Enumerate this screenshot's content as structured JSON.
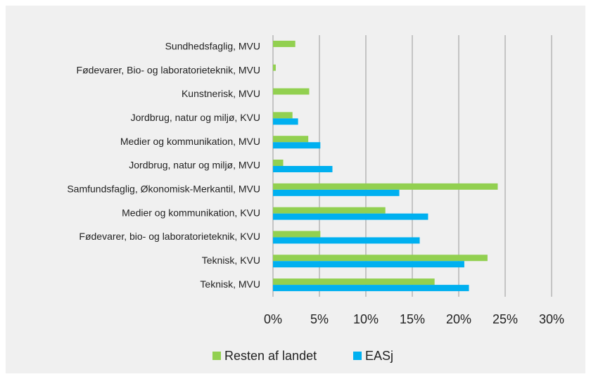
{
  "chart_data": {
    "type": "hbar",
    "categories": [
      "Sundhedsfaglig, MVU",
      "Fødevarer, Bio- og laboratorieteknik, MVU",
      "Kunstnerisk, MVU",
      "Jordbrug, natur og miljø, KVU",
      "Medier og kommunikation, MVU",
      "Jordbrug, natur og miljø, MVU",
      "Samfundsfaglig, Økonomisk-Merkantil, MVU",
      "Medier og kommunikation, KVU",
      "Fødevarer, bio- og laboratorieteknik, KVU",
      "Teknisk, KVU",
      "Teknisk, MVU"
    ],
    "series": [
      {
        "name": "Resten af landet",
        "color": "#92d050",
        "values": [
          2.4,
          0.3,
          3.9,
          2.1,
          3.8,
          1.1,
          24.2,
          12.1,
          5.1,
          23.1,
          17.4
        ]
      },
      {
        "name": "EASj",
        "color": "#00b0f0",
        "values": [
          null,
          null,
          null,
          2.7,
          5.1,
          6.4,
          13.6,
          16.7,
          15.8,
          20.6,
          21.1
        ]
      }
    ],
    "xlim": [
      0,
      30
    ],
    "xticks": [
      {
        "value": 0,
        "label": "0%"
      },
      {
        "value": 5,
        "label": "5%"
      },
      {
        "value": 10,
        "label": "10%"
      },
      {
        "value": 15,
        "label": "15%"
      },
      {
        "value": 20,
        "label": "20%"
      },
      {
        "value": 25,
        "label": "25%"
      },
      {
        "value": 30,
        "label": "30%"
      }
    ],
    "grid": true,
    "legend": "bottom"
  }
}
